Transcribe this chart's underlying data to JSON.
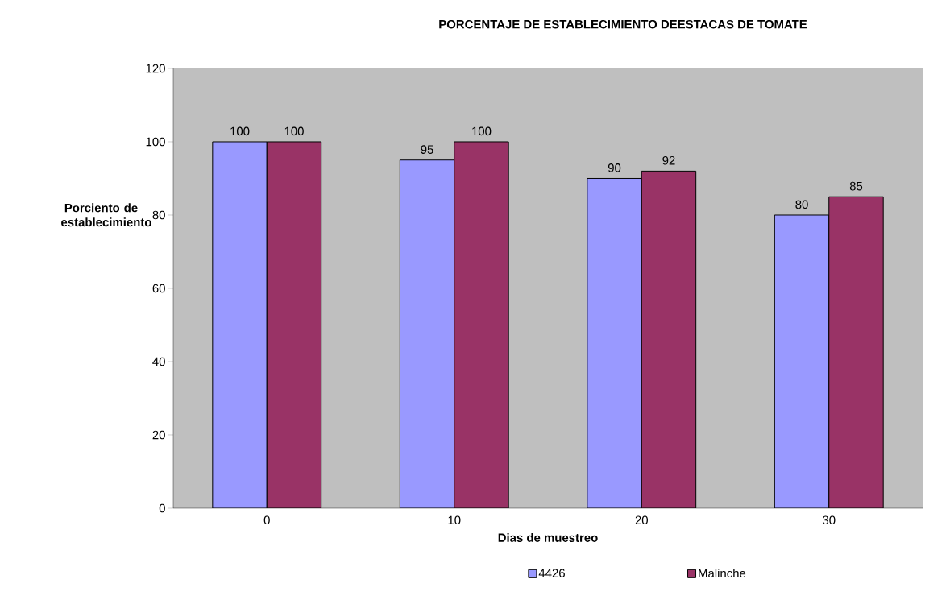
{
  "chart_data": {
    "type": "bar",
    "title": "PORCENTAJE DE ESTABLECIMIENTO DEESTACAS DE TOMATE",
    "xlabel": "Dias de muestreo",
    "ylabel": "Porciento de establecimiento",
    "categories": [
      "0",
      "10",
      "20",
      "30"
    ],
    "series": [
      {
        "name": "4426",
        "color": "#9999ff",
        "values": [
          100,
          95,
          90,
          80
        ]
      },
      {
        "name": "Malinche",
        "color": "#993366",
        "values": [
          100,
          100,
          92,
          85
        ]
      }
    ],
    "ylim": [
      0,
      120
    ],
    "yticks": [
      0,
      20,
      40,
      60,
      80,
      100,
      120
    ],
    "data_labels": true,
    "legend": "bottom",
    "grid": false
  }
}
